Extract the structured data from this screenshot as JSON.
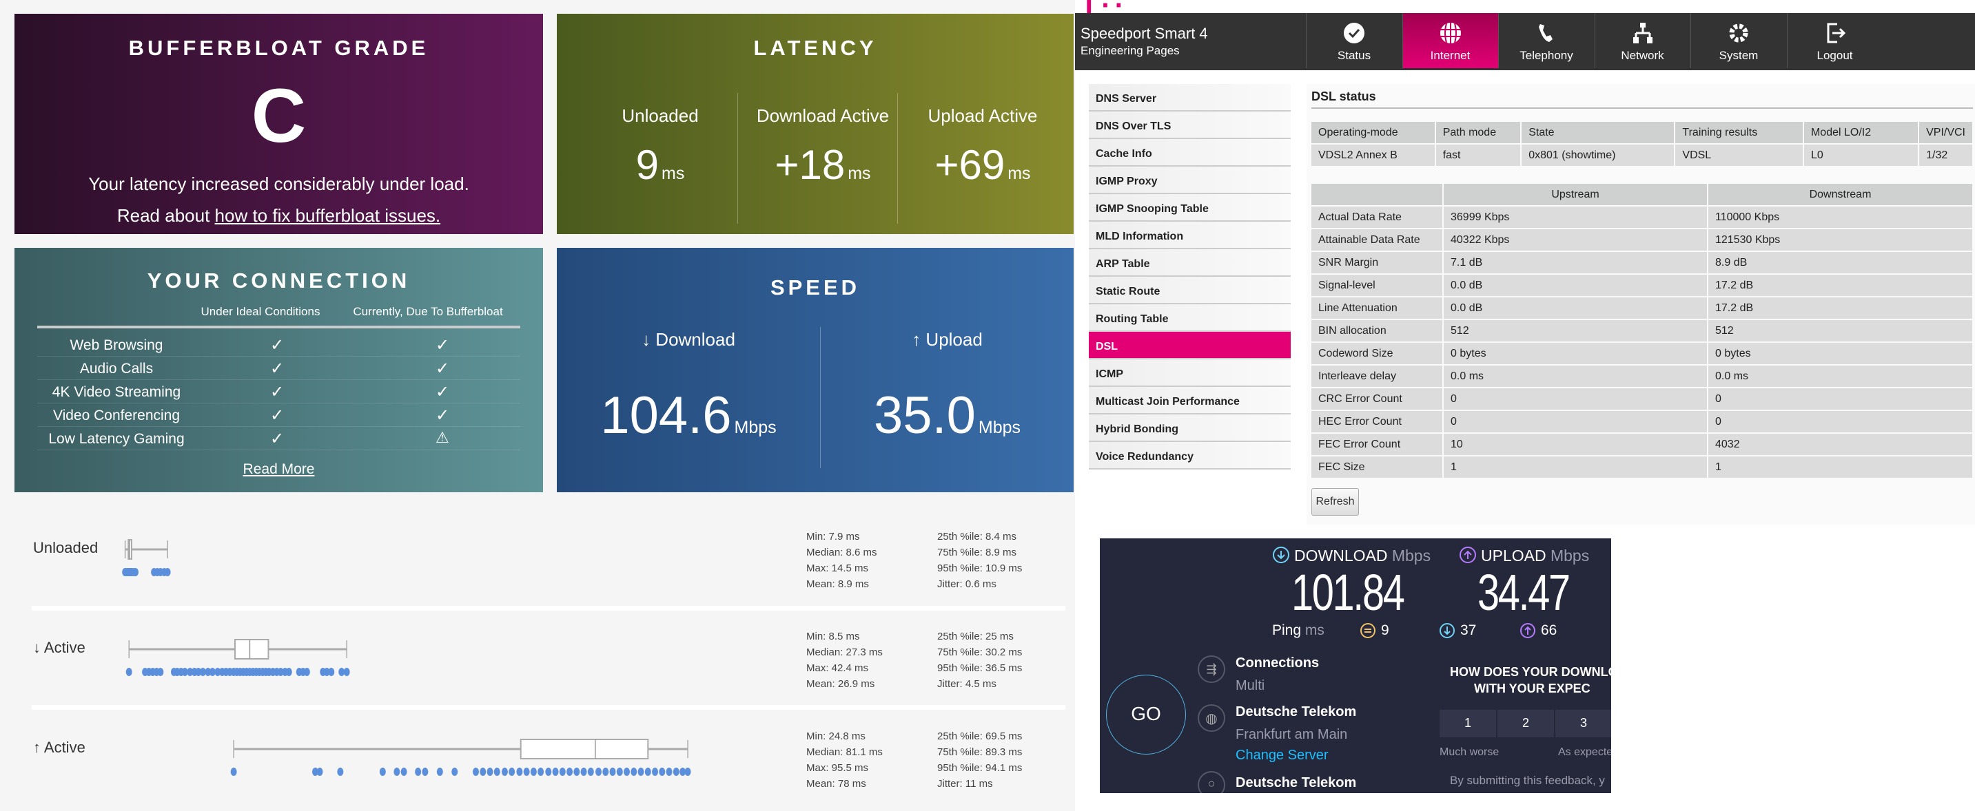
{
  "grade": {
    "title": "BUFFERBLOAT GRADE",
    "grade": "C",
    "desc": "Your latency increased considerably under load.",
    "read_prefix": "Read about ",
    "link": "how to fix bufferbloat issues."
  },
  "latency": {
    "title": "LATENCY",
    "cols": [
      {
        "label": "Unloaded",
        "value": "9",
        "unit": "ms"
      },
      {
        "label": "Download Active",
        "value": "+18",
        "unit": "ms"
      },
      {
        "label": "Upload Active",
        "value": "+69",
        "unit": "ms"
      }
    ]
  },
  "connection": {
    "title": "YOUR CONNECTION",
    "col1": "Under Ideal Conditions",
    "col2": "Currently, Due To Bufferbloat",
    "rows": [
      {
        "label": "Web Browsing",
        "ideal": "ok",
        "current": "ok"
      },
      {
        "label": "Audio Calls",
        "ideal": "ok",
        "current": "ok"
      },
      {
        "label": "4K Video Streaming",
        "ideal": "ok",
        "current": "ok"
      },
      {
        "label": "Video Conferencing",
        "ideal": "ok",
        "current": "ok"
      },
      {
        "label": "Low Latency Gaming",
        "ideal": "ok",
        "current": "warning"
      }
    ],
    "read_more": "Read More"
  },
  "speed": {
    "title": "SPEED",
    "download_label": "↓ Download",
    "download": "104.6",
    "upload_label": "↑ Upload",
    "upload": "35.0",
    "unit": "Mbps"
  },
  "latency_detail": [
    {
      "label": "Unloaded",
      "min": 7.9,
      "q1": 8.4,
      "median": 8.6,
      "q3": 8.9,
      "max": 14.5,
      "stats": [
        "Min: 7.9 ms",
        "Median: 8.6 ms",
        "Max: 14.5 ms",
        "Mean: 8.9 ms",
        "25th %ile: 8.4 ms",
        "75th %ile: 8.9 ms",
        "95th %ile: 10.9 ms",
        "Jitter: 0.6 ms"
      ],
      "samples": [
        7.9,
        8.1,
        8.2,
        8.3,
        8.4,
        8.5,
        8.6,
        8.6,
        8.7,
        8.8,
        8.9,
        9.0,
        9.3,
        9.5,
        12.4,
        12.9,
        13.4,
        14.0,
        14.5
      ]
    },
    {
      "label": "↓ Active",
      "min": 8.5,
      "q1": 25,
      "median": 27.3,
      "q3": 30.2,
      "max": 42.4,
      "stats": [
        "Min: 8.5 ms",
        "Median: 27.3 ms",
        "Max: 42.4 ms",
        "Mean: 26.9 ms",
        "25th %ile: 25 ms",
        "75th %ile: 30.2 ms",
        "95th %ile: 36.5 ms",
        "Jitter: 4.5 ms"
      ],
      "samples": [
        8.5,
        11,
        11.6,
        12.2,
        12.8,
        13.4,
        15.5,
        16,
        16.6,
        17.2,
        18,
        18.7,
        19.3,
        20,
        20.8,
        21.5,
        22.3,
        23,
        23.6,
        24.2,
        24.8,
        25.3,
        25.8,
        26.3,
        26.8,
        27.3,
        27.8,
        28.3,
        28.8,
        29.3,
        29.8,
        30.3,
        30.9,
        31.5,
        32.1,
        32.8,
        33.4,
        35,
        35.6,
        36.2,
        38.7,
        39.3,
        40,
        41.6,
        42.4
      ]
    },
    {
      "label": "↑ Active",
      "min": 24.8,
      "q1": 69.5,
      "median": 81.1,
      "q3": 89.3,
      "max": 95.5,
      "stats": [
        "Min: 24.8 ms",
        "Median: 81.1 ms",
        "Max: 95.5 ms",
        "Mean: 78 ms",
        "25th %ile: 69.5 ms",
        "75th %ile: 89.3 ms",
        "95th %ile: 94.1 ms",
        "Jitter: 11 ms"
      ],
      "samples": [
        24.8,
        37.5,
        38.2,
        41.4,
        48,
        50.2,
        51.3,
        53.5,
        54.6,
        56.9,
        59.2,
        62.5,
        63.6,
        64.7,
        65.8,
        67,
        68.1,
        69.3,
        70.4,
        71.5,
        72.6,
        73.8,
        74.9,
        76,
        77.1,
        78.2,
        79.3,
        80.4,
        81.6,
        82.7,
        83.8,
        84.9,
        86,
        87.1,
        88.2,
        89.3,
        90.4,
        91.5,
        92.6,
        93.7,
        94.7,
        95.5
      ]
    }
  ],
  "speedport": {
    "title": "Speedport Smart 4",
    "subtitle": "Engineering Pages",
    "tabs": [
      "Status",
      "Internet",
      "Telephony",
      "Network",
      "System",
      "Logout"
    ],
    "active_tab": 1,
    "sidebar": [
      "DNS Server",
      "DNS Over TLS",
      "Cache Info",
      "IGMP Proxy",
      "IGMP Snooping Table",
      "MLD Information",
      "ARP Table",
      "Static Route",
      "Routing Table",
      "DSL",
      "ICMP",
      "Multicast Join Performance",
      "Hybrid Bonding",
      "Voice Redundancy"
    ],
    "active_item": 9,
    "heading": "DSL status",
    "table1": {
      "headers": [
        "Operating-mode",
        "Path mode",
        "State",
        "Training results",
        "Model LO/I2",
        "VPI/VCI"
      ],
      "row": [
        "VDSL2 Annex B",
        "fast",
        "0x801 (showtime)",
        "VDSL",
        "L0",
        "1/32"
      ]
    },
    "table2": {
      "headers": [
        "",
        "Upstream",
        "Downstream"
      ],
      "rows": [
        [
          "Actual Data Rate",
          "36999 Kbps",
          "110000 Kbps"
        ],
        [
          "Attainable Data Rate",
          "40322 Kbps",
          "121530 Kbps"
        ],
        [
          "SNR Margin",
          "7.1 dB",
          "8.9 dB"
        ],
        [
          "Signal-level",
          "0.0 dB",
          "17.2 dB"
        ],
        [
          "Line Attenuation",
          "0.0 dB",
          "17.2 dB"
        ],
        [
          "BIN allocation",
          "512",
          "512"
        ],
        [
          "Codeword Size",
          "0 bytes",
          "0 bytes"
        ],
        [
          "Interleave delay",
          "0.0 ms",
          "0.0 ms"
        ],
        [
          "CRC Error Count",
          "0",
          "0"
        ],
        [
          "HEC Error Count",
          "0",
          "0"
        ],
        [
          "FEC Error Count",
          "10",
          "4032"
        ],
        [
          "FEC Size",
          "1",
          "1"
        ]
      ]
    },
    "refresh": "Refresh"
  },
  "speedtest": {
    "download_label": "DOWNLOAD",
    "upload_label": "UPLOAD",
    "unit": "Mbps",
    "download": "101.84",
    "upload": "34.47",
    "ping_label": "Ping",
    "ping_unit": "ms",
    "ping": "9",
    "ping_down": "37",
    "ping_up": "66",
    "go": "GO",
    "connections_label": "Connections",
    "connections_value": "Multi",
    "isp": "Deutsche Telekom",
    "server_city": "Frankfurt am Main",
    "change_server": "Change Server",
    "host": "Deutsche Telekom",
    "feedback_q1": "HOW DOES YOUR DOWNLOA",
    "feedback_q2": "WITH YOUR EXPEC",
    "ratings": [
      "1",
      "2",
      "3"
    ],
    "rate_low": "Much worse",
    "rate_mid": "As expecte",
    "feedback_note": "By submitting this feedback, y",
    "colors": {
      "download": "#6fd3f7",
      "upload": "#b57bff",
      "ping": "#f4c266",
      "link": "#1cbfff"
    }
  }
}
